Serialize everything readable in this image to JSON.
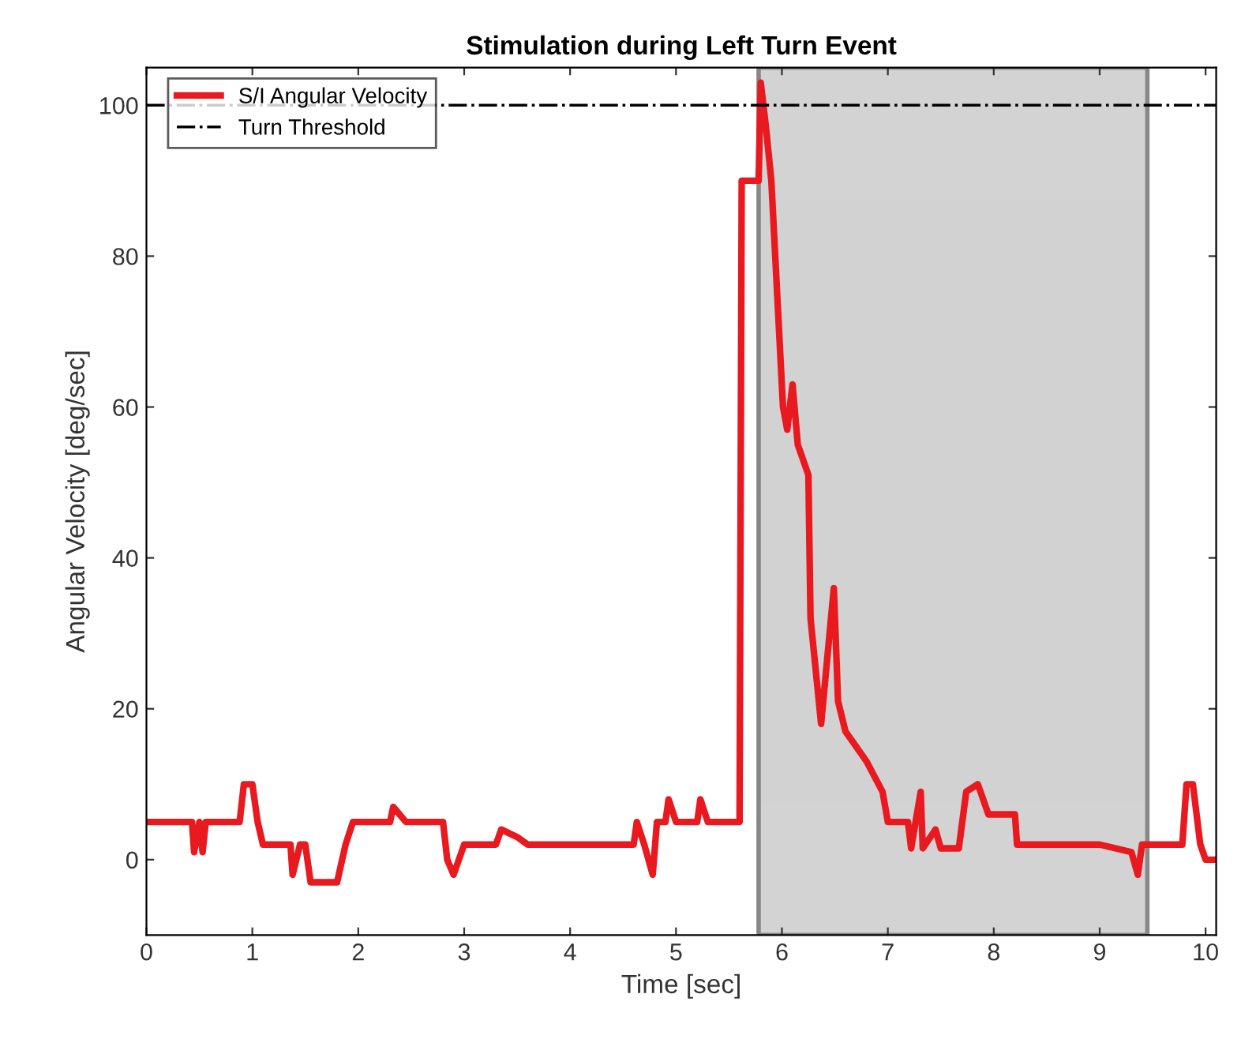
{
  "chart_data": {
    "type": "line",
    "title": "Stimulation during Left Turn Event",
    "xlabel": "Time [sec]",
    "ylabel": "Angular Velocity [deg/sec]",
    "xlim": [
      0,
      10.1
    ],
    "ylim": [
      -10,
      105
    ],
    "xticks": [
      0,
      1,
      2,
      3,
      4,
      5,
      6,
      7,
      8,
      9,
      10
    ],
    "yticks": [
      0,
      20,
      40,
      60,
      80,
      100
    ],
    "grid": false,
    "legend": "top left",
    "line_style": "solid",
    "series": [
      {
        "name": "S/I Angular Velocity",
        "color": "#e8191f",
        "x": [
          0,
          0.43,
          0.45,
          0.5,
          0.53,
          0.56,
          0.6,
          0.88,
          0.92,
          1.0,
          1.05,
          1.1,
          1.36,
          1.38,
          1.45,
          1.5,
          1.55,
          1.8,
          1.88,
          1.95,
          2.3,
          2.33,
          2.45,
          2.5,
          2.8,
          2.84,
          2.9,
          3.0,
          3.3,
          3.35,
          3.5,
          3.6,
          4.6,
          4.63,
          4.7,
          4.78,
          4.82,
          4.9,
          4.93,
          5.0,
          5.2,
          5.23,
          5.3,
          5.6,
          5.62,
          5.78,
          5.8,
          5.85,
          5.9,
          6.01,
          6.05,
          6.1,
          6.15,
          6.25,
          6.27,
          6.37,
          6.49,
          6.53,
          6.6,
          6.8,
          6.95,
          7.0,
          7.19,
          7.22,
          7.31,
          7.33,
          7.45,
          7.5,
          7.67,
          7.74,
          7.85,
          7.95,
          8.2,
          8.22,
          9.0,
          9.3,
          9.36,
          9.4,
          9.78,
          9.82,
          9.88,
          9.95,
          10.0,
          10.1
        ],
        "values": [
          5,
          5,
          1,
          5,
          1,
          5,
          5,
          5,
          10,
          10,
          5,
          2,
          2,
          -2,
          2,
          2,
          -3,
          -3,
          2,
          5,
          5,
          7,
          5,
          5,
          5,
          0,
          -2,
          2,
          2,
          4,
          3,
          2,
          2,
          5,
          2,
          -2,
          5,
          5,
          8,
          5,
          5,
          8,
          5,
          5,
          90,
          90,
          103,
          97,
          90,
          60,
          57,
          63,
          55,
          51,
          32,
          18,
          36,
          21,
          17,
          13,
          9,
          5,
          5,
          1.5,
          9,
          1.5,
          4,
          1.5,
          1.5,
          9,
          10,
          6,
          6,
          2,
          2,
          1,
          -2,
          2,
          2,
          10,
          10,
          2,
          0,
          0
        ]
      }
    ],
    "ref_lines": [
      {
        "axis": "y",
        "value": 100,
        "label": "Turn Threshold",
        "color": "#000000",
        "line_style": "dashdot"
      }
    ],
    "bands": [
      {
        "axis": "x",
        "from": 5.78,
        "to": 9.45,
        "color": "#c0c0c0"
      }
    ]
  }
}
